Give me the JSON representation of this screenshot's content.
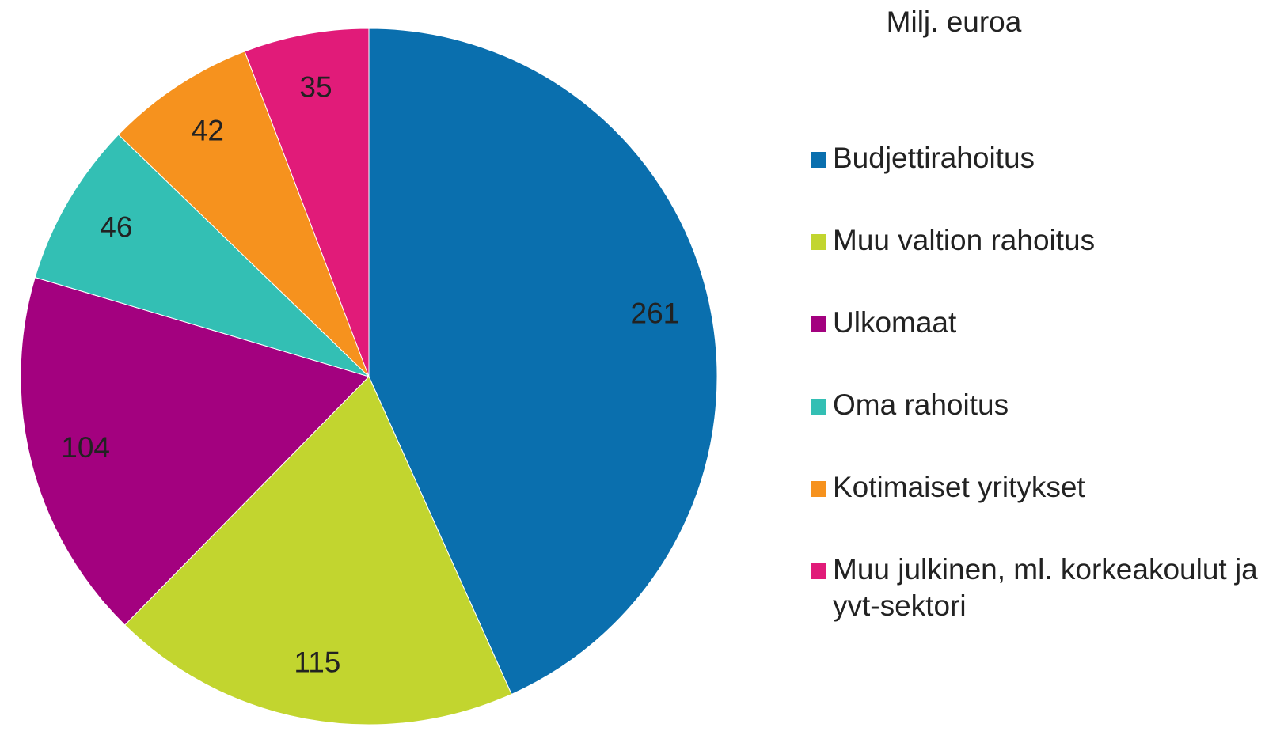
{
  "chart_data": {
    "type": "pie",
    "legend_title": "Milj. euroa",
    "categories": [
      "Budjettirahoitus",
      "Muu valtion rahoitus",
      "Ulkomaat",
      "Oma rahoitus",
      "Kotimaiset yritykset",
      "Muu julkinen, ml. korkeakoulut ja yvt-sektori"
    ],
    "values": [
      261,
      115,
      104,
      46,
      42,
      35
    ],
    "colors": [
      "#0a6fae",
      "#c2d52f",
      "#a3017f",
      "#33bfb4",
      "#f6921e",
      "#e11b79"
    ]
  }
}
